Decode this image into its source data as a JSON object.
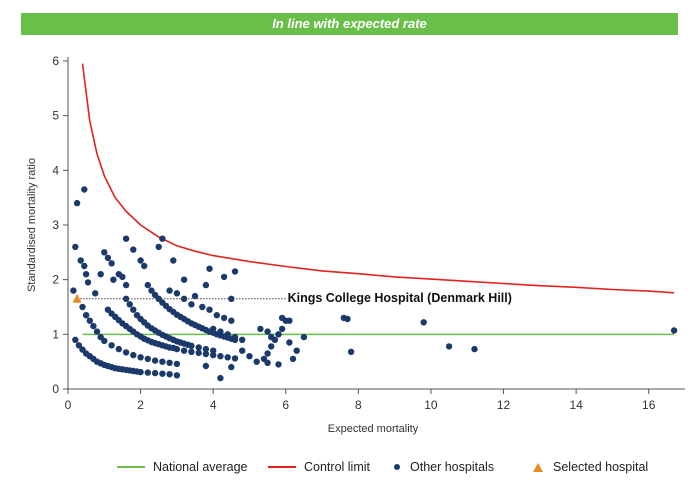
{
  "banner": {
    "title": "In line with expected rate"
  },
  "colors": {
    "banner": "#6abf4b",
    "national_average": "#6abf4b",
    "control_limit": "#e0231c",
    "other_hospitals": "#1b3a6b",
    "selected_hospital": "#e88b1e",
    "axis": "#555555"
  },
  "legend": {
    "national_average": "National average",
    "control_limit": "Control limit",
    "other_hospitals": "Other hospitals",
    "selected_hospital": "Selected hospital"
  },
  "chart_data": {
    "type": "scatter",
    "title": "",
    "xlabel": "Expected mortality",
    "ylabel": "Standardised mortality ratio",
    "xlim": [
      0,
      17
    ],
    "ylim": [
      0,
      6
    ],
    "xticks": [
      0,
      2,
      4,
      6,
      8,
      10,
      12,
      14,
      16
    ],
    "yticks": [
      0,
      1,
      2,
      3,
      4,
      5,
      6
    ],
    "grid": false,
    "legend_position": "bottom",
    "national_average": 1,
    "control_limit": [
      [
        0.4,
        5.95
      ],
      [
        0.6,
        4.9
      ],
      [
        0.8,
        4.3
      ],
      [
        1,
        3.9
      ],
      [
        1.3,
        3.5
      ],
      [
        1.6,
        3.25
      ],
      [
        2,
        3.0
      ],
      [
        2.5,
        2.78
      ],
      [
        3,
        2.62
      ],
      [
        3.5,
        2.52
      ],
      [
        4,
        2.44
      ],
      [
        5,
        2.33
      ],
      [
        6,
        2.24
      ],
      [
        7,
        2.16
      ],
      [
        8,
        2.11
      ],
      [
        9,
        2.05
      ],
      [
        10,
        2.01
      ],
      [
        11,
        1.97
      ],
      [
        12,
        1.93
      ],
      [
        13,
        1.89
      ],
      [
        14,
        1.86
      ],
      [
        15,
        1.82
      ],
      [
        16,
        1.79
      ],
      [
        16.7,
        1.76
      ]
    ],
    "selected_hospital": {
      "name": "Kings College Hospital (Denmark Hill)",
      "x": 0.25,
      "y": 1.65
    },
    "series": [
      {
        "name": "Other hospitals",
        "points": [
          [
            0.25,
            3.4
          ],
          [
            0.45,
            3.65
          ],
          [
            0.2,
            2.6
          ],
          [
            0.35,
            2.35
          ],
          [
            0.45,
            2.25
          ],
          [
            0.5,
            2.1
          ],
          [
            0.55,
            1.95
          ],
          [
            0.15,
            1.8
          ],
          [
            0.75,
            1.75
          ],
          [
            0.4,
            1.5
          ],
          [
            0.5,
            1.35
          ],
          [
            0.6,
            1.25
          ],
          [
            0.7,
            1.15
          ],
          [
            0.8,
            1.05
          ],
          [
            0.9,
            0.95
          ],
          [
            1.0,
            0.88
          ],
          [
            1.2,
            0.8
          ],
          [
            1.4,
            0.73
          ],
          [
            1.6,
            0.67
          ],
          [
            1.8,
            0.62
          ],
          [
            2.0,
            0.58
          ],
          [
            2.2,
            0.55
          ],
          [
            2.4,
            0.52
          ],
          [
            2.6,
            0.5
          ],
          [
            2.8,
            0.48
          ],
          [
            3.0,
            0.46
          ],
          [
            0.2,
            0.9
          ],
          [
            0.3,
            0.8
          ],
          [
            0.4,
            0.72
          ],
          [
            0.5,
            0.65
          ],
          [
            0.6,
            0.6
          ],
          [
            0.7,
            0.55
          ],
          [
            0.8,
            0.5
          ],
          [
            0.9,
            0.47
          ],
          [
            1.0,
            0.44
          ],
          [
            1.1,
            0.42
          ],
          [
            1.2,
            0.4
          ],
          [
            1.3,
            0.38
          ],
          [
            1.4,
            0.37
          ],
          [
            1.5,
            0.36
          ],
          [
            1.6,
            0.35
          ],
          [
            1.7,
            0.34
          ],
          [
            1.8,
            0.33
          ],
          [
            1.9,
            0.32
          ],
          [
            2.0,
            0.31
          ],
          [
            2.2,
            0.3
          ],
          [
            2.4,
            0.29
          ],
          [
            2.6,
            0.28
          ],
          [
            2.8,
            0.27
          ],
          [
            0.9,
            2.1
          ],
          [
            1.0,
            2.5
          ],
          [
            1.1,
            2.4
          ],
          [
            1.2,
            2.3
          ],
          [
            1.25,
            2.0
          ],
          [
            1.4,
            2.1
          ],
          [
            1.5,
            2.05
          ],
          [
            1.6,
            1.9
          ],
          [
            1.1,
            1.45
          ],
          [
            1.2,
            1.38
          ],
          [
            1.3,
            1.32
          ],
          [
            1.4,
            1.26
          ],
          [
            1.5,
            1.2
          ],
          [
            1.6,
            1.15
          ],
          [
            1.7,
            1.1
          ],
          [
            1.8,
            1.05
          ],
          [
            1.9,
            1.0
          ],
          [
            2.0,
            0.96
          ],
          [
            2.1,
            0.92
          ],
          [
            2.2,
            0.89
          ],
          [
            2.3,
            0.86
          ],
          [
            2.4,
            0.84
          ],
          [
            2.5,
            0.82
          ],
          [
            2.6,
            0.8
          ],
          [
            2.7,
            0.78
          ],
          [
            2.8,
            0.76
          ],
          [
            2.9,
            0.75
          ],
          [
            3.0,
            0.73
          ],
          [
            3.2,
            0.7
          ],
          [
            3.4,
            0.68
          ],
          [
            3.6,
            0.66
          ],
          [
            3.8,
            0.64
          ],
          [
            4.0,
            0.62
          ],
          [
            4.2,
            0.6
          ],
          [
            4.4,
            0.58
          ],
          [
            4.6,
            0.56
          ],
          [
            1.6,
            2.75
          ],
          [
            1.8,
            2.55
          ],
          [
            2.0,
            2.35
          ],
          [
            2.1,
            2.25
          ],
          [
            2.5,
            2.6
          ],
          [
            2.6,
            2.75
          ],
          [
            2.9,
            2.35
          ],
          [
            2.2,
            1.9
          ],
          [
            2.3,
            1.8
          ],
          [
            2.4,
            1.72
          ],
          [
            2.5,
            1.65
          ],
          [
            2.6,
            1.58
          ],
          [
            2.7,
            1.52
          ],
          [
            2.8,
            1.46
          ],
          [
            2.9,
            1.41
          ],
          [
            3.0,
            1.36
          ],
          [
            3.1,
            1.32
          ],
          [
            3.2,
            1.28
          ],
          [
            3.3,
            1.24
          ],
          [
            3.4,
            1.2
          ],
          [
            3.5,
            1.17
          ],
          [
            3.6,
            1.14
          ],
          [
            3.7,
            1.11
          ],
          [
            3.8,
            1.08
          ],
          [
            3.9,
            1.05
          ],
          [
            4.0,
            1.03
          ],
          [
            4.1,
            1.0
          ],
          [
            4.2,
            0.98
          ],
          [
            4.3,
            0.96
          ],
          [
            4.4,
            0.94
          ],
          [
            4.5,
            0.92
          ],
          [
            4.6,
            0.9
          ],
          [
            1.6,
            1.65
          ],
          [
            1.7,
            1.55
          ],
          [
            1.8,
            1.45
          ],
          [
            1.9,
            1.35
          ],
          [
            2.0,
            1.28
          ],
          [
            2.1,
            1.22
          ],
          [
            2.2,
            1.16
          ],
          [
            2.3,
            1.11
          ],
          [
            2.4,
            1.07
          ],
          [
            2.5,
            1.03
          ],
          [
            2.6,
            0.99
          ],
          [
            2.7,
            0.96
          ],
          [
            2.8,
            0.93
          ],
          [
            2.9,
            0.9
          ],
          [
            3.0,
            0.87
          ],
          [
            3.1,
            0.85
          ],
          [
            3.2,
            0.83
          ],
          [
            3.3,
            0.81
          ],
          [
            3.4,
            0.79
          ],
          [
            3.6,
            0.76
          ],
          [
            3.8,
            0.73
          ],
          [
            4.0,
            0.7
          ],
          [
            2.8,
            1.8
          ],
          [
            3.0,
            1.75
          ],
          [
            3.2,
            1.65
          ],
          [
            3.4,
            1.55
          ],
          [
            3.5,
            1.7
          ],
          [
            3.7,
            1.5
          ],
          [
            3.9,
            1.45
          ],
          [
            4.1,
            1.35
          ],
          [
            4.3,
            1.3
          ],
          [
            4.5,
            1.25
          ],
          [
            4.5,
            1.65
          ],
          [
            3.2,
            2.0
          ],
          [
            3.8,
            1.9
          ],
          [
            3.9,
            2.2
          ],
          [
            4.3,
            2.05
          ],
          [
            4.6,
            2.15
          ],
          [
            4.0,
            1.1
          ],
          [
            4.2,
            1.05
          ],
          [
            4.4,
            1.0
          ],
          [
            4.6,
            0.95
          ],
          [
            4.8,
            0.9
          ],
          [
            4.8,
            0.7
          ],
          [
            5.0,
            0.6
          ],
          [
            5.2,
            0.5
          ],
          [
            5.4,
            0.55
          ],
          [
            5.5,
            0.65
          ],
          [
            5.6,
            0.78
          ],
          [
            5.7,
            0.9
          ],
          [
            5.8,
            1.0
          ],
          [
            5.9,
            1.1
          ],
          [
            6.0,
            1.25
          ],
          [
            5.3,
            1.1
          ],
          [
            5.5,
            1.05
          ],
          [
            5.6,
            0.95
          ],
          [
            5.9,
            1.3
          ],
          [
            6.1,
            1.25
          ],
          [
            6.1,
            0.85
          ],
          [
            6.3,
            0.7
          ],
          [
            6.2,
            0.55
          ],
          [
            6.5,
            0.95
          ],
          [
            5.8,
            0.45
          ],
          [
            5.5,
            0.48
          ],
          [
            4.2,
            0.2
          ],
          [
            3.0,
            0.25
          ],
          [
            4.5,
            0.4
          ],
          [
            3.8,
            0.42
          ],
          [
            7.6,
            1.3
          ],
          [
            7.7,
            1.28
          ],
          [
            7.8,
            0.68
          ],
          [
            9.8,
            1.22
          ],
          [
            10.5,
            0.78
          ],
          [
            11.2,
            0.73
          ],
          [
            16.7,
            1.07
          ]
        ]
      }
    ]
  }
}
